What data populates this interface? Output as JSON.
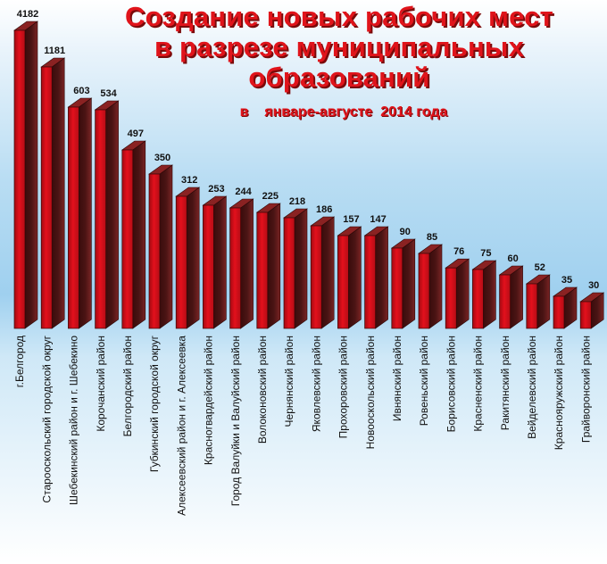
{
  "chart_data": {
    "type": "bar",
    "title_lines": [
      "Создание новых рабочих мест",
      "в разрезе муниципальных",
      "образований"
    ],
    "subtitle": "в    январе-августе  2014 года",
    "categories": [
      "г.Белгород",
      "Старооскольский городской округ",
      "Шебекинский район и г. Шебекино",
      "Корочанский район",
      "Белгородский район",
      "Губкинский городской округ",
      "Алексеевский район и г. Алексеевка",
      "Красногвардейский район",
      "Город Валуйки и Валуйский район",
      "Волоконовский район",
      "Чернянский район",
      "Яковлевский район",
      "Прохоровский район",
      "Новооскольский район",
      "Ивнянский район",
      "Ровеньский район",
      "Борисовский район",
      "Красненский район",
      "Ракитянский район",
      "Вейделевский район",
      "Краснояружский район",
      "Грайворонский район"
    ],
    "values": [
      4182,
      1181,
      603,
      534,
      497,
      350,
      312,
      253,
      244,
      225,
      218,
      186,
      157,
      147,
      90,
      85,
      76,
      75,
      60,
      52,
      35,
      30
    ],
    "bar_color": "#e3101c",
    "bar_side_color": "#4a1414",
    "bar_top_color": "#8a2222"
  }
}
